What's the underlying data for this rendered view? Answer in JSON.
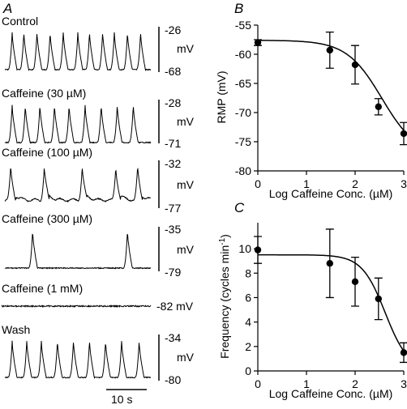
{
  "panel_labels": {
    "a": "A",
    "b": "B",
    "c": "C"
  },
  "traces": [
    {
      "label": "Control",
      "scale_top": "-26",
      "scale_unit": "mV",
      "scale_bottom": "-68",
      "spikes": [
        0.05,
        0.13,
        0.22,
        0.31,
        0.4,
        0.5,
        0.58,
        0.67,
        0.75,
        0.84,
        0.93
      ]
    },
    {
      "label": "Caffeine (30 µM)",
      "scale_top": "-28",
      "scale_unit": "mV",
      "scale_bottom": "-71",
      "spikes": [
        0.05,
        0.14,
        0.24,
        0.34,
        0.44,
        0.55,
        0.66,
        0.77,
        0.88
      ]
    },
    {
      "label": "Caffeine (100 µM)",
      "scale_top": "-32",
      "scale_unit": "mV",
      "scale_bottom": "-77",
      "spikes": [
        0.04,
        0.27,
        0.53,
        0.76,
        0.91
      ]
    },
    {
      "label": "Caffeine (300 µM)",
      "scale_top": "-35",
      "scale_unit": "mV",
      "scale_bottom": "-79",
      "spikes": [
        0.19,
        0.84
      ]
    },
    {
      "label": "Caffeine (1 mM)",
      "scale_single": "-82 mV",
      "spikes": []
    },
    {
      "label": "Wash",
      "scale_top": "-34",
      "scale_unit": "mV",
      "scale_bottom": "-80",
      "spikes": [
        0.05,
        0.15,
        0.25,
        0.36,
        0.47,
        0.58,
        0.69,
        0.8,
        0.92
      ]
    }
  ],
  "time_scale_label": "10 s",
  "chart_data": [
    {
      "type": "scatter",
      "panel": "B",
      "title": "",
      "xlabel": "Log Caffeine Conc. (µM)",
      "ylabel": "RMP (mV)",
      "xlim": [
        0,
        3
      ],
      "ylim": [
        -80,
        -55
      ],
      "xticks": [
        "0",
        "1",
        "2",
        "3"
      ],
      "yticks": [
        "-55",
        "-60",
        "-65",
        "-70",
        "-75",
        "-80"
      ],
      "x": [
        0,
        1.48,
        2,
        2.48,
        3
      ],
      "y": [
        -58,
        -59.3,
        -61.8,
        -69,
        -73.6
      ],
      "error": [
        0.5,
        3.1,
        3.3,
        1.4,
        1.9
      ],
      "fit": {
        "top": -57.6,
        "bottom": -77.5,
        "log_ic50": 2.55,
        "hill": 1.2
      }
    },
    {
      "type": "scatter",
      "panel": "C",
      "title": "",
      "xlabel": "Log Caffeine Conc. (µM)",
      "ylabel": "Frequency (cycles min-1)",
      "ylabel_main": "Frequency (cycles min",
      "ylabel_sup": "-1",
      "ylabel_end": ")",
      "xlim": [
        0,
        3
      ],
      "ylim": [
        0,
        11
      ],
      "xticks": [
        "0",
        "1",
        "2",
        "3"
      ],
      "yticks": [
        "0",
        "2",
        "4",
        "6",
        "8",
        "10"
      ],
      "x": [
        0,
        1.48,
        2,
        2.48,
        3
      ],
      "y": [
        9.9,
        8.8,
        7.3,
        5.9,
        1.5
      ],
      "error": [
        1.1,
        2.8,
        2.0,
        1.7,
        0.8
      ],
      "fit": {
        "top": 9.5,
        "bottom": 0,
        "log_ic50": 2.62,
        "hill": 1.8
      }
    }
  ]
}
